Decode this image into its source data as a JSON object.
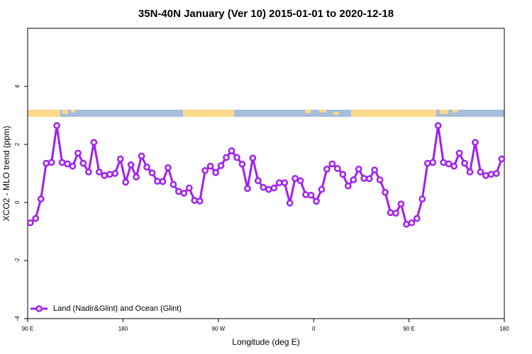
{
  "chart_data": {
    "type": "line",
    "title": "35N-40N January (Ver 10)   2015-01-01 to 2020-12-18",
    "x_label": "Longitude (deg E)",
    "y_label": "XCO2 - MLO trend (ppm)",
    "x": [
      92.5,
      97.5,
      102.5,
      107.5,
      112.5,
      117.5,
      122.5,
      127.5,
      132.5,
      137.5,
      142.5,
      147.5,
      152.5,
      157.5,
      162.5,
      167.5,
      172.5,
      177.5,
      182.5,
      187.5,
      192.5,
      197.5,
      202.5,
      207.5,
      212.5,
      217.5,
      222.5,
      227.5,
      232.5,
      237.5,
      242.5,
      247.5,
      252.5,
      257.5,
      262.5,
      267.5,
      272.5,
      277.5,
      282.5,
      287.5,
      292.5,
      297.5,
      302.5,
      307.5,
      312.5,
      317.5,
      322.5,
      327.5,
      332.5,
      337.5,
      342.5,
      347.5,
      352.5,
      357.5,
      362.5,
      367.5,
      372.5,
      377.5,
      382.5,
      387.5,
      392.5,
      397.5,
      402.5,
      407.5,
      412.5,
      417.5,
      422.5,
      427.5,
      432.5,
      437.5,
      442.5,
      447.5,
      452.5,
      457.5,
      462.5,
      467.5,
      472.5,
      477.5,
      482.5,
      487.5,
      492.5,
      497.5,
      502.5,
      507.5,
      512.5,
      517.5,
      522.5,
      527.5,
      532.5,
      537.5
    ],
    "series": [
      {
        "name": "Land (Nadir&Glint) and Ocean (Glint)",
        "color": "#a020f0",
        "values": [
          -0.7,
          -0.55,
          0.12,
          1.35,
          1.38,
          2.65,
          1.38,
          1.33,
          1.25,
          1.7,
          1.35,
          1.05,
          2.07,
          1.05,
          0.93,
          0.97,
          1.0,
          1.5,
          0.7,
          1.3,
          0.88,
          1.6,
          1.22,
          1.02,
          0.73,
          0.72,
          1.2,
          0.62,
          0.38,
          0.32,
          0.5,
          0.07,
          0.05,
          1.1,
          1.25,
          1.03,
          1.27,
          1.55,
          1.78,
          1.55,
          1.32,
          0.48,
          1.53,
          0.75,
          0.52,
          0.45,
          0.5,
          0.68,
          0.68,
          -0.02,
          0.83,
          0.75,
          0.27,
          0.25,
          0.04,
          0.45,
          1.15,
          1.33,
          1.17,
          0.97,
          0.57,
          0.78,
          1.15,
          0.83,
          0.82,
          1.12,
          0.78,
          0.35,
          -0.35,
          -0.37,
          -0.05,
          -0.75,
          -0.7,
          -0.55,
          0.12,
          1.35,
          1.38,
          2.65,
          1.38,
          1.33,
          1.25,
          1.7,
          1.35,
          1.05,
          2.07,
          1.05,
          0.93,
          0.97,
          1.0,
          1.5
        ]
      }
    ],
    "xlim": [
      90,
      540
    ],
    "xticks": [
      {
        "value": 90,
        "label": "90 E"
      },
      180,
      {
        "value": 270,
        "label": "90 W"
      },
      {
        "value": 360,
        "label": "0"
      },
      {
        "value": 450,
        "label": "90 E"
      },
      {
        "value": 540,
        "label": "180"
      }
    ],
    "ylim": [
      -4,
      6
    ],
    "yticks": [
      -4,
      -2,
      0,
      2,
      4
    ],
    "grid": false,
    "legend": "bottom-left"
  }
}
